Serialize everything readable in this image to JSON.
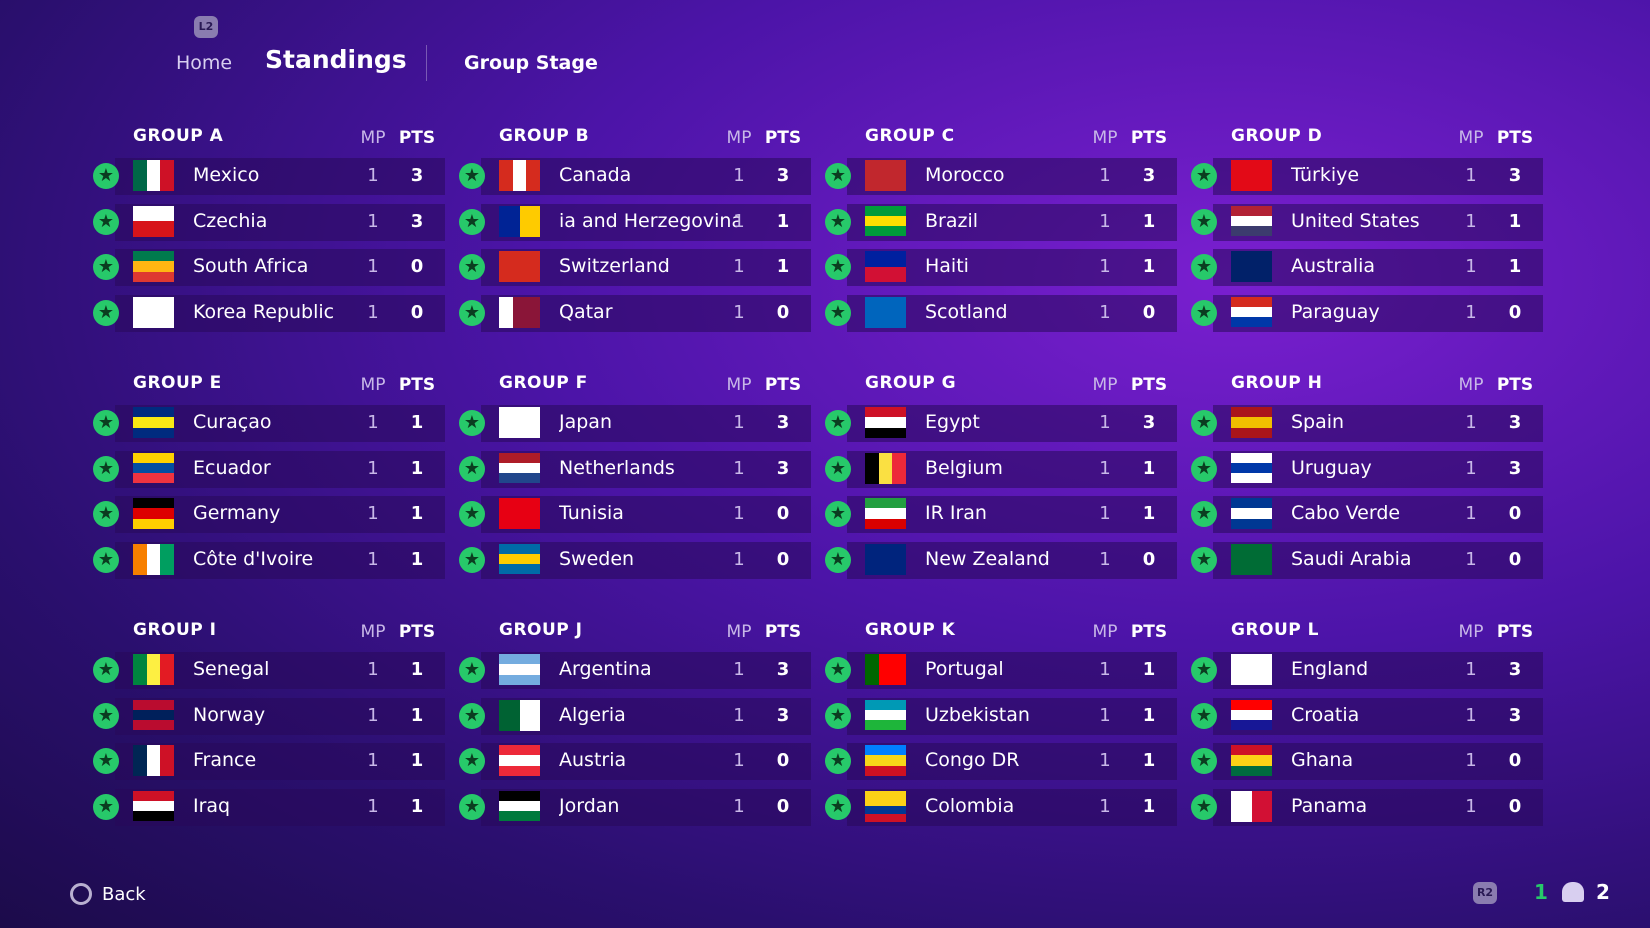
{
  "nav": {
    "l2": "L2",
    "home": "Home",
    "standings": "Standings",
    "stage": "Group Stage"
  },
  "groups": [
    {
      "name": "GROUP A",
      "mp_label": "MP",
      "pts_label": "PTS",
      "teams": [
        {
          "name": "Mexico",
          "mp": 1,
          "pts": 3
        },
        {
          "name": "Czechia",
          "mp": 1,
          "pts": 3
        },
        {
          "name": "South Africa",
          "mp": 1,
          "pts": 0
        },
        {
          "name": "Korea Republic",
          "mp": 1,
          "pts": 0
        }
      ]
    },
    {
      "name": "GROUP B",
      "mp_label": "MP",
      "pts_label": "PTS",
      "teams": [
        {
          "name": "Canada",
          "mp": 1,
          "pts": 3
        },
        {
          "name": "ia and Herzegovina",
          "mp": 1,
          "pts": 1
        },
        {
          "name": "Switzerland",
          "mp": 1,
          "pts": 1
        },
        {
          "name": "Qatar",
          "mp": 1,
          "pts": 0
        }
      ]
    },
    {
      "name": "GROUP C",
      "mp_label": "MP",
      "pts_label": "PTS",
      "teams": [
        {
          "name": "Morocco",
          "mp": 1,
          "pts": 3
        },
        {
          "name": "Brazil",
          "mp": 1,
          "pts": 1
        },
        {
          "name": "Haiti",
          "mp": 1,
          "pts": 1
        },
        {
          "name": "Scotland",
          "mp": 1,
          "pts": 0
        }
      ]
    },
    {
      "name": "GROUP D",
      "mp_label": "MP",
      "pts_label": "PTS",
      "teams": [
        {
          "name": "Türkiye",
          "mp": 1,
          "pts": 3
        },
        {
          "name": "United States",
          "mp": 1,
          "pts": 1
        },
        {
          "name": "Australia",
          "mp": 1,
          "pts": 1
        },
        {
          "name": "Paraguay",
          "mp": 1,
          "pts": 0
        }
      ]
    },
    {
      "name": "GROUP E",
      "mp_label": "MP",
      "pts_label": "PTS",
      "teams": [
        {
          "name": "Curaçao",
          "mp": 1,
          "pts": 1
        },
        {
          "name": "Ecuador",
          "mp": 1,
          "pts": 1
        },
        {
          "name": "Germany",
          "mp": 1,
          "pts": 1
        },
        {
          "name": "Côte d'Ivoire",
          "mp": 1,
          "pts": 1
        }
      ]
    },
    {
      "name": "GROUP F",
      "mp_label": "MP",
      "pts_label": "PTS",
      "teams": [
        {
          "name": "Japan",
          "mp": 1,
          "pts": 3
        },
        {
          "name": "Netherlands",
          "mp": 1,
          "pts": 3
        },
        {
          "name": "Tunisia",
          "mp": 1,
          "pts": 0
        },
        {
          "name": "Sweden",
          "mp": 1,
          "pts": 0
        }
      ]
    },
    {
      "name": "GROUP G",
      "mp_label": "MP",
      "pts_label": "PTS",
      "teams": [
        {
          "name": "Egypt",
          "mp": 1,
          "pts": 3
        },
        {
          "name": "Belgium",
          "mp": 1,
          "pts": 1
        },
        {
          "name": "IR Iran",
          "mp": 1,
          "pts": 1
        },
        {
          "name": "New Zealand",
          "mp": 1,
          "pts": 0
        }
      ]
    },
    {
      "name": "GROUP H",
      "mp_label": "MP",
      "pts_label": "PTS",
      "teams": [
        {
          "name": "Spain",
          "mp": 1,
          "pts": 3
        },
        {
          "name": "Uruguay",
          "mp": 1,
          "pts": 3
        },
        {
          "name": "Cabo Verde",
          "mp": 1,
          "pts": 0
        },
        {
          "name": "Saudi Arabia",
          "mp": 1,
          "pts": 0
        }
      ]
    },
    {
      "name": "GROUP I",
      "mp_label": "MP",
      "pts_label": "PTS",
      "teams": [
        {
          "name": "Senegal",
          "mp": 1,
          "pts": 1
        },
        {
          "name": "Norway",
          "mp": 1,
          "pts": 1
        },
        {
          "name": "France",
          "mp": 1,
          "pts": 1
        },
        {
          "name": "Iraq",
          "mp": 1,
          "pts": 1
        }
      ]
    },
    {
      "name": "GROUP J",
      "mp_label": "MP",
      "pts_label": "PTS",
      "teams": [
        {
          "name": "Argentina",
          "mp": 1,
          "pts": 3
        },
        {
          "name": "Algeria",
          "mp": 1,
          "pts": 3
        },
        {
          "name": "Austria",
          "mp": 1,
          "pts": 0
        },
        {
          "name": "Jordan",
          "mp": 1,
          "pts": 0
        }
      ]
    },
    {
      "name": "GROUP K",
      "mp_label": "MP",
      "pts_label": "PTS",
      "teams": [
        {
          "name": "Portugal",
          "mp": 1,
          "pts": 1
        },
        {
          "name": "Uzbekistan",
          "mp": 1,
          "pts": 1
        },
        {
          "name": "Congo DR",
          "mp": 1,
          "pts": 1
        },
        {
          "name": "Colombia",
          "mp": 1,
          "pts": 1
        }
      ]
    },
    {
      "name": "GROUP L",
      "mp_label": "MP",
      "pts_label": "PTS",
      "teams": [
        {
          "name": "England",
          "mp": 1,
          "pts": 3
        },
        {
          "name": "Croatia",
          "mp": 1,
          "pts": 3
        },
        {
          "name": "Ghana",
          "mp": 1,
          "pts": 0
        },
        {
          "name": "Panama",
          "mp": 1,
          "pts": 0
        }
      ]
    }
  ],
  "footer": {
    "back": "Back",
    "r2": "R2",
    "count_a": 1,
    "count_b": 2
  }
}
